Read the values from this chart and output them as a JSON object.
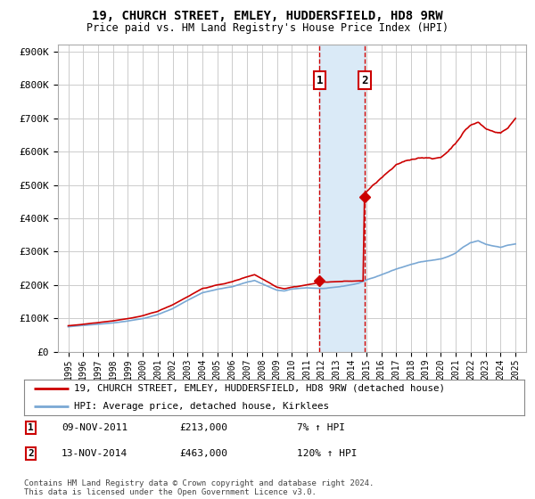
{
  "title": "19, CHURCH STREET, EMLEY, HUDDERSFIELD, HD8 9RW",
  "subtitle": "Price paid vs. HM Land Registry's House Price Index (HPI)",
  "ylabel_values": [
    "£0",
    "£100K",
    "£200K",
    "£300K",
    "£400K",
    "£500K",
    "£600K",
    "£700K",
    "£800K",
    "£900K"
  ],
  "yticks": [
    0,
    100000,
    200000,
    300000,
    400000,
    500000,
    600000,
    700000,
    800000,
    900000
  ],
  "ylim": [
    0,
    920000
  ],
  "sale1_x": 2011.86,
  "sale1_price": 213000,
  "sale2_x": 2014.87,
  "sale2_price": 463000,
  "sale1_date_str": "09-NOV-2011",
  "sale1_price_str": "£213,000",
  "sale1_hpi_str": "7% ↑ HPI",
  "sale2_date_str": "13-NOV-2014",
  "sale2_price_str": "£463,000",
  "sale2_hpi_str": "120% ↑ HPI",
  "legend_line1": "19, CHURCH STREET, EMLEY, HUDDERSFIELD, HD8 9RW (detached house)",
  "legend_line2": "HPI: Average price, detached house, Kirklees",
  "footer": "Contains HM Land Registry data © Crown copyright and database right 2024.\nThis data is licensed under the Open Government Licence v3.0.",
  "line_color_red": "#cc0000",
  "line_color_blue": "#7aa8d4",
  "shade_color": "#daeaf7",
  "background_color": "#ffffff",
  "grid_color": "#cccccc"
}
